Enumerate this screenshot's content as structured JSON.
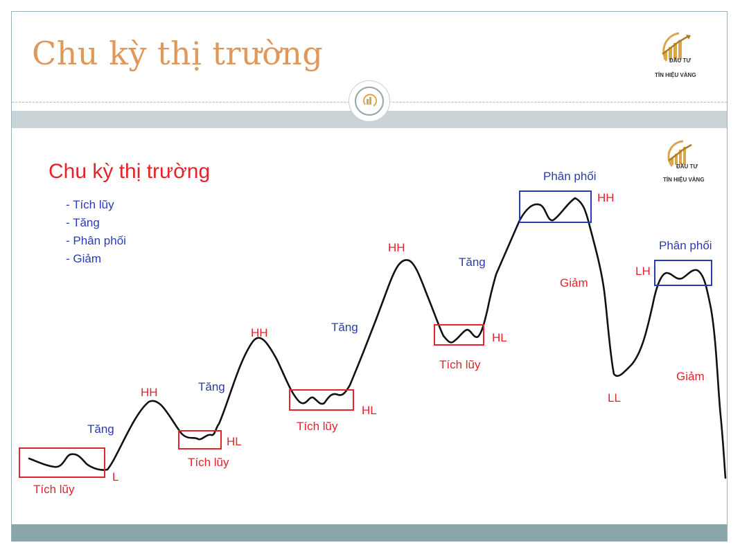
{
  "slide": {
    "title": "Chu kỳ thị trường"
  },
  "logos": {
    "header_logo": {
      "line1": "ĐẦU TƯ",
      "line2": "TÍN HIỆU VÀNG"
    },
    "diagram_logo": {
      "line1": "ĐẦU TƯ",
      "line2": "TÍN HIỆU VÀNG"
    }
  },
  "diagram": {
    "title": "Chu kỳ thị trường",
    "phases": [
      "- Tích lũy",
      "- Tăng",
      "- Phân phối",
      "- Giảm"
    ],
    "labels": {
      "accum1": "Tích lũy",
      "low1": "L",
      "up1": "Tăng",
      "hh1": "HH",
      "up2": "Tăng",
      "hl1": "HL",
      "accum2": "Tích lũy",
      "hh2": "HH",
      "up3": "Tăng",
      "hl2": "HL",
      "accum3": "Tích lũy",
      "hh3": "HH",
      "up4": "Tăng",
      "hl3": "HL",
      "accum4": "Tích lũy",
      "dist1": "Phân phối",
      "hh4": "HH",
      "down1": "Giảm",
      "ll1": "LL",
      "lh1": "LH",
      "dist2": "Phân phối",
      "down2": "Giảm"
    },
    "colors": {
      "accumulation_box": "#e3222b",
      "distribution_box": "#2a3bb0",
      "price_line": "#111111"
    }
  }
}
